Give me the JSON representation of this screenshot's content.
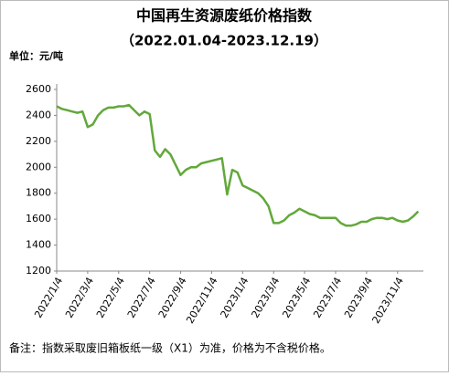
{
  "chart_data": {
    "type": "line",
    "title": "中国再生资源废纸价格指数",
    "subtitle": "（2022.01.04-2023.12.19）",
    "y_label": "单位：元/吨",
    "note": "备注：指数采取废旧箱板纸一级（X1）为准，价格为不含税价格。",
    "categories": [
      "2022/1/4",
      null,
      null,
      null,
      null,
      null,
      "2022/3/4",
      null,
      null,
      null,
      null,
      null,
      "2022/5/4",
      null,
      null,
      null,
      null,
      null,
      "2022/7/4",
      null,
      null,
      null,
      null,
      null,
      "2022/9/4",
      null,
      null,
      null,
      null,
      null,
      "2022/11/4",
      null,
      null,
      null,
      null,
      null,
      "2023/1/4",
      null,
      null,
      null,
      null,
      null,
      "2023/3/4",
      null,
      null,
      null,
      null,
      null,
      "2023/5/4",
      null,
      null,
      null,
      null,
      null,
      "2023/7/4",
      null,
      null,
      null,
      null,
      null,
      "2023/9/4",
      null,
      null,
      null,
      null,
      null,
      "2023/11/4",
      null,
      null,
      null,
      null
    ],
    "series": [
      {
        "name": "废纸价格指数",
        "color": "#62a83a",
        "values": [
          2470,
          2450,
          2440,
          2430,
          2420,
          2430,
          2310,
          2330,
          2400,
          2440,
          2460,
          2460,
          2470,
          2470,
          2480,
          2440,
          2400,
          2430,
          2410,
          2130,
          2080,
          2140,
          2100,
          2020,
          1940,
          1980,
          2000,
          2000,
          2030,
          2040,
          2050,
          2060,
          2070,
          1790,
          1980,
          1960,
          1860,
          1840,
          1820,
          1800,
          1760,
          1700,
          1570,
          1570,
          1590,
          1630,
          1650,
          1680,
          1660,
          1640,
          1630,
          1610,
          1610,
          1610,
          1610,
          1570,
          1550,
          1550,
          1560,
          1580,
          1580,
          1600,
          1610,
          1610,
          1600,
          1610,
          1590,
          1580,
          1590,
          1620,
          1660
        ]
      }
    ],
    "ylim": [
      1200,
      2600
    ],
    "yticks": [
      1200,
      1400,
      1600,
      1800,
      2000,
      2200,
      2400,
      2600
    ]
  }
}
